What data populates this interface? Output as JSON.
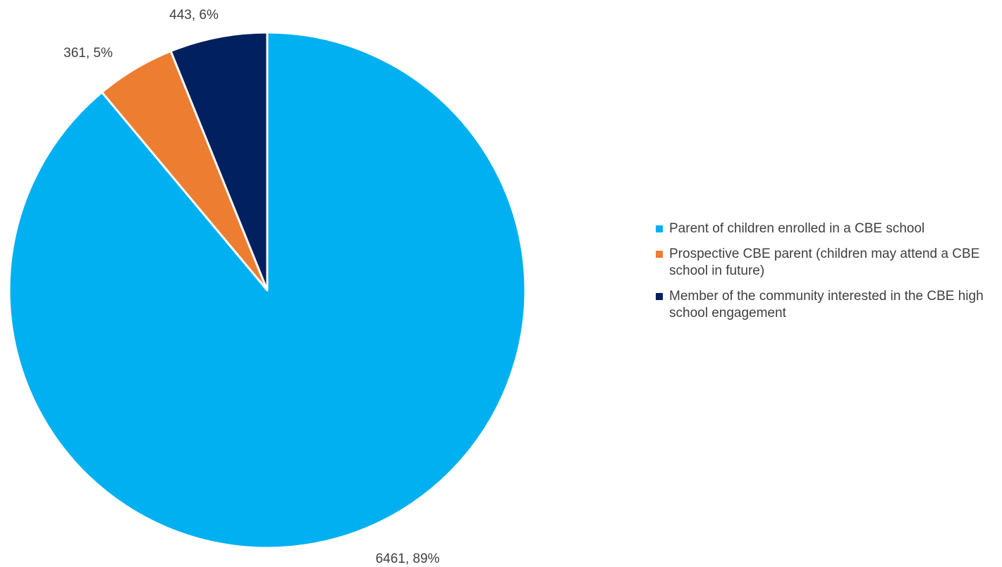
{
  "chart_data": {
    "type": "pie",
    "categories": [
      "Parent of children enrolled in a CBE school",
      "Prospective CBE parent (children may attend a CBE school in future)",
      "Member of the community interested in the CBE high school engagement"
    ],
    "values": [
      6461,
      361,
      443
    ],
    "percents": [
      89,
      5,
      6
    ],
    "data_labels": [
      "6461, 89%",
      "361, 5%",
      "443, 6%"
    ],
    "colors": [
      "#00B0F0",
      "#ED7D31",
      "#002060"
    ],
    "legend_position": "right",
    "title": ""
  },
  "legend": {
    "items": [
      {
        "label": "Parent of children enrolled in a CBE school",
        "color": "#00B0F0"
      },
      {
        "label": "Prospective CBE parent (children may attend a CBE school in future)",
        "color": "#ED7D31"
      },
      {
        "label": "Member of the community interested in the CBE high school engagement",
        "color": "#002060"
      }
    ]
  }
}
